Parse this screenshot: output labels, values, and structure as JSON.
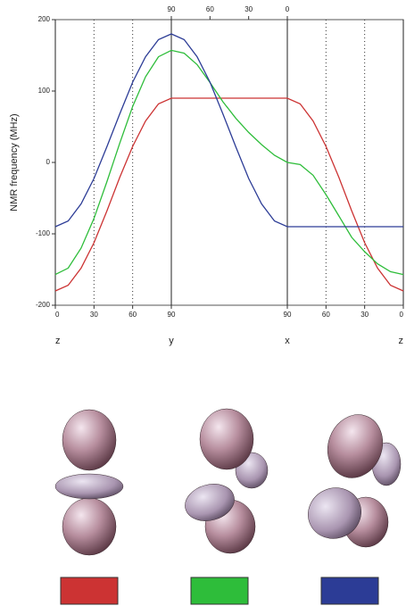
{
  "chart_data": {
    "type": "line",
    "y_label": "NMR frequency (MHz)",
    "x": [
      0,
      10,
      20,
      30,
      40,
      50,
      60,
      70,
      80,
      90,
      100,
      110,
      120,
      130,
      140,
      150,
      160,
      170,
      180,
      190,
      200,
      210,
      220,
      230,
      240,
      250,
      260,
      270
    ],
    "series": [
      {
        "color": "#cc3333",
        "values": [
          -180,
          -172,
          -148,
          -112.5,
          -68,
          -21,
          22.5,
          58,
          82,
          90,
          90,
          90,
          90,
          90,
          90,
          90,
          90,
          90,
          90,
          82,
          58,
          22.5,
          -21,
          -68,
          -112.5,
          -148,
          -172,
          -180
        ]
      },
      {
        "color": "#2ebd3a",
        "values": [
          -157,
          -148,
          -120,
          -78.5,
          -27,
          27,
          78.5,
          120,
          148,
          157,
          153,
          137,
          112,
          85,
          62,
          42,
          25,
          10,
          0,
          -3,
          -18,
          -45,
          -75,
          -105,
          -125,
          -142,
          -153,
          -157
        ]
      },
      {
        "color": "#2c3c96",
        "values": [
          -90,
          -82,
          -58,
          -22.5,
          22,
          68,
          112.5,
          148,
          172,
          180,
          172,
          148,
          112.5,
          68,
          22,
          -22.5,
          -58,
          -82,
          -90,
          -90,
          -90,
          -90,
          -90,
          -90,
          -90,
          -90,
          -90,
          -90
        ]
      }
    ],
    "xlim": [
      0,
      270
    ],
    "ylim": [
      -200,
      200
    ],
    "yticks": [
      -200,
      -100,
      0,
      100,
      200
    ],
    "xticks": [
      0,
      30,
      60,
      90,
      {
        "value": 180,
        "label": "90"
      },
      {
        "value": 210,
        "label": "60"
      },
      {
        "value": 240,
        "label": "30"
      },
      {
        "value": 270,
        "label": "0"
      }
    ],
    "x2ticks": [
      {
        "value": 90,
        "label": "90"
      },
      {
        "value": 120,
        "label": "60"
      },
      {
        "value": 150,
        "label": "30"
      },
      {
        "value": 180,
        "label": "0"
      }
    ],
    "axis_points": [
      {
        "value": 0,
        "label": "z"
      },
      {
        "value": 90,
        "label": "y"
      },
      {
        "value": 180,
        "label": "x"
      },
      {
        "value": 270,
        "label": "z"
      }
    ]
  }
}
